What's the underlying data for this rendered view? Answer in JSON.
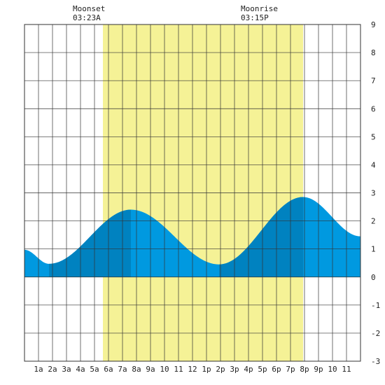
{
  "chart_data": {
    "type": "area",
    "title": "",
    "xlabel": "",
    "ylabel": "",
    "xlim": [
      0,
      24
    ],
    "ylim": [
      -3,
      9
    ],
    "grid": true,
    "x_ticks": [
      {
        "x": 1,
        "label": "1a"
      },
      {
        "x": 2,
        "label": "2a"
      },
      {
        "x": 3,
        "label": "3a"
      },
      {
        "x": 4,
        "label": "4a"
      },
      {
        "x": 5,
        "label": "5a"
      },
      {
        "x": 6,
        "label": "6a"
      },
      {
        "x": 7,
        "label": "7a"
      },
      {
        "x": 8,
        "label": "8a"
      },
      {
        "x": 9,
        "label": "9a"
      },
      {
        "x": 10,
        "label": "10"
      },
      {
        "x": 11,
        "label": "11"
      },
      {
        "x": 12,
        "label": "12"
      },
      {
        "x": 13,
        "label": "1p"
      },
      {
        "x": 14,
        "label": "2p"
      },
      {
        "x": 15,
        "label": "3p"
      },
      {
        "x": 16,
        "label": "4p"
      },
      {
        "x": 17,
        "label": "5p"
      },
      {
        "x": 18,
        "label": "6p"
      },
      {
        "x": 19,
        "label": "7p"
      },
      {
        "x": 20,
        "label": "8p"
      },
      {
        "x": 21,
        "label": "9p"
      },
      {
        "x": 22,
        "label": "10"
      },
      {
        "x": 23,
        "label": "11"
      }
    ],
    "y_ticks": [
      -3,
      -2,
      -1,
      0,
      1,
      2,
      3,
      4,
      5,
      6,
      7,
      8,
      9
    ],
    "daylight": {
      "start": 5.6,
      "end": 19.9
    },
    "dark_bands": [
      [
        1.75,
        7.6
      ],
      [
        13.9,
        19.9
      ]
    ],
    "tide_extremes": [
      {
        "x": 1.75,
        "y": 0.47
      },
      {
        "x": 7.6,
        "y": 2.4
      },
      {
        "x": 13.9,
        "y": 0.45
      },
      {
        "x": 19.9,
        "y": 2.85
      }
    ],
    "tide_start": {
      "x": 0,
      "y": 0.97
    },
    "tide_end": {
      "x": 24,
      "y": 1.45
    },
    "annotations": [
      {
        "name": "moonset",
        "label": "Moonset",
        "time": "03:23A",
        "x": 4.3
      },
      {
        "name": "moonrise",
        "label": "Moonrise",
        "time": "03:15P",
        "x": 16.3
      }
    ],
    "colors": {
      "daylight": "#f5f296",
      "tide_light": "#0099e0",
      "tide_dark": "#0082c0",
      "grid": "#333333",
      "background": "#ffffff"
    }
  }
}
